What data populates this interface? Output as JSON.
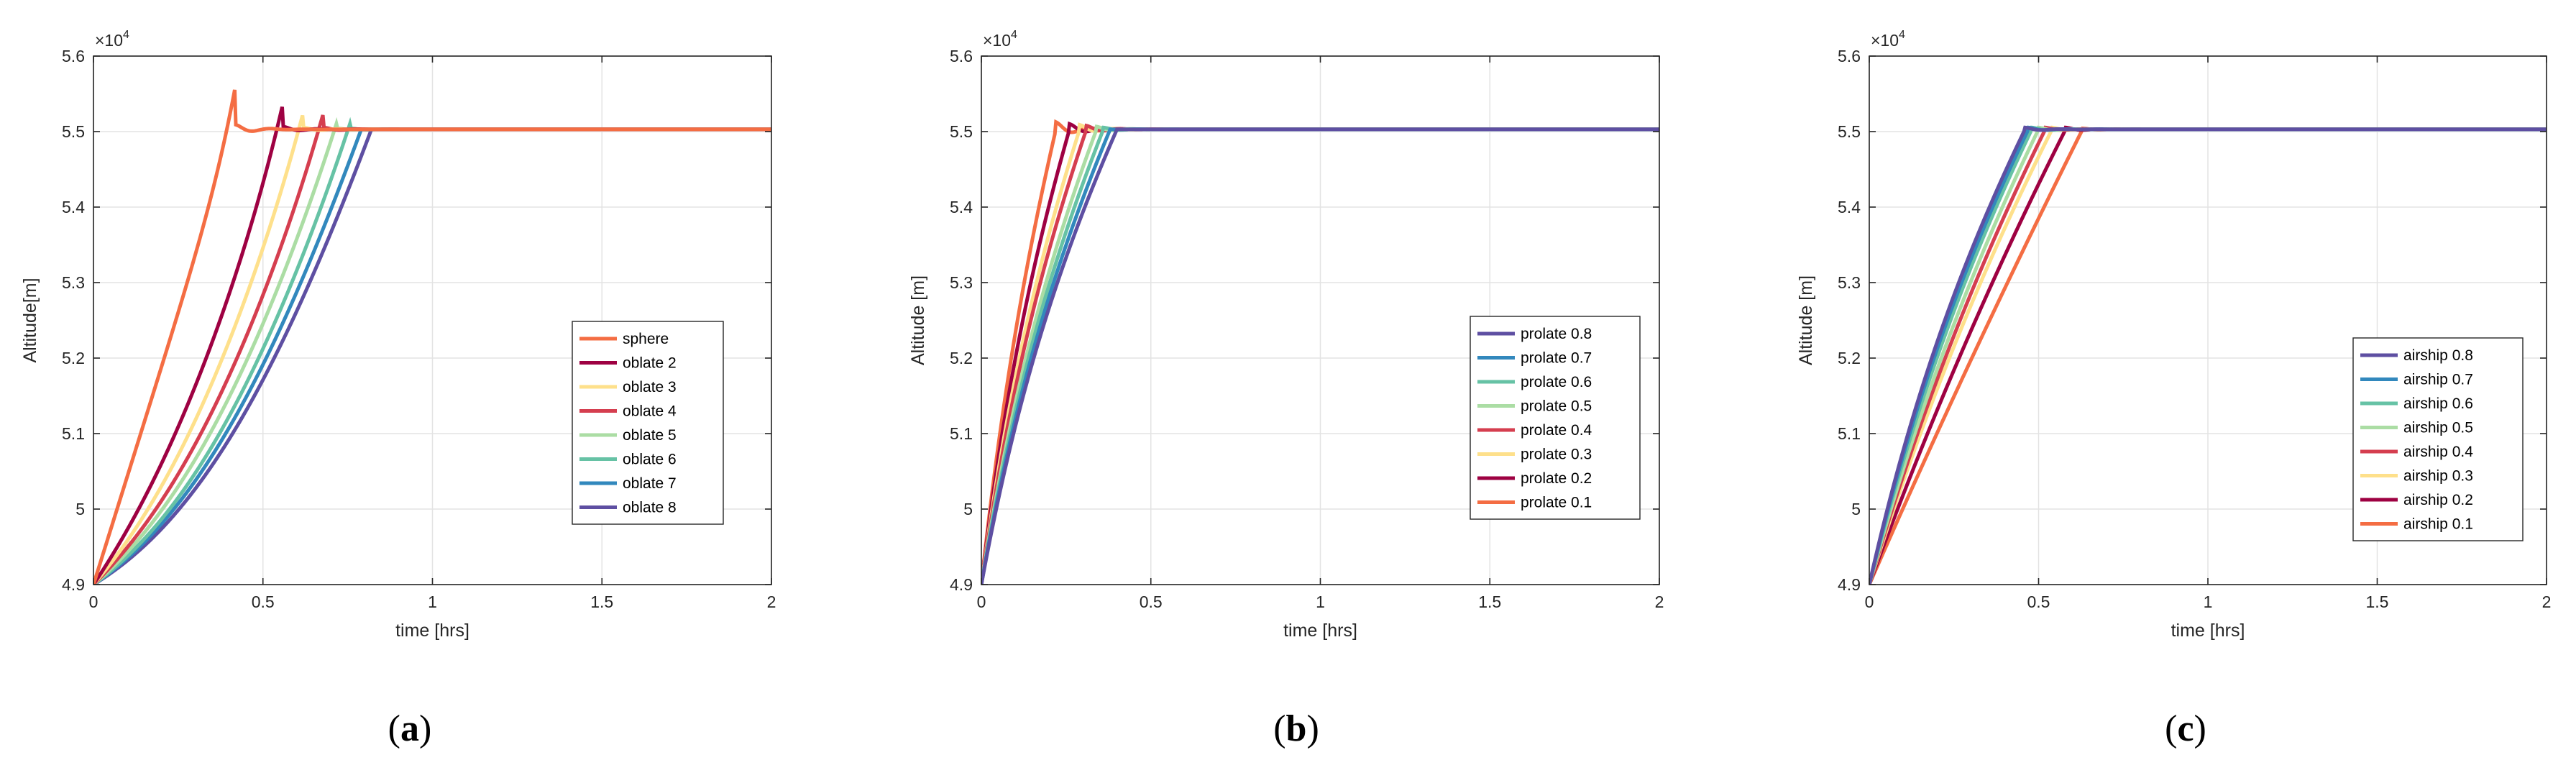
{
  "figure": {
    "panels_count": 3
  },
  "chart_data": [
    {
      "type": "line",
      "panel": "a",
      "caption_open": "(",
      "caption_letter": "a",
      "caption_close": ")",
      "xlabel": "time [hrs]",
      "ylabel": "Altitude[m]",
      "xlim": [
        0,
        2
      ],
      "ylim": [
        4.9,
        5.6
      ],
      "y_exponent_base": "×10",
      "y_exponent_power": "4",
      "xticks": [
        0,
        0.5,
        1,
        1.5,
        2
      ],
      "xtick_labels": [
        "0",
        "0.5",
        "1",
        "1.5",
        "2"
      ],
      "yticks": [
        4.9,
        5.0,
        5.1,
        5.2,
        5.3,
        5.4,
        5.5,
        5.6
      ],
      "ytick_labels": [
        "4.9",
        "5",
        "5.1",
        "5.2",
        "5.3",
        "5.4",
        "5.5",
        "5.6"
      ],
      "grid": true,
      "legend_position": "center-right",
      "series": [
        {
          "name": "sphere",
          "color": "#F46D43",
          "t_reach": 0.42,
          "overshoot": 0.005,
          "curvature": 0.0
        },
        {
          "name": "oblate 2",
          "color": "#9E0142",
          "t_reach": 0.56,
          "overshoot": 0.003,
          "curvature": 0.45
        },
        {
          "name": "oblate 3",
          "color": "#FEE08B",
          "t_reach": 0.62,
          "overshoot": 0.002,
          "curvature": 0.55
        },
        {
          "name": "oblate 4",
          "color": "#D53E4F",
          "t_reach": 0.68,
          "overshoot": 0.002,
          "curvature": 0.6
        },
        {
          "name": "oblate 5",
          "color": "#ABDDA4",
          "t_reach": 0.72,
          "overshoot": 0.001,
          "curvature": 0.65
        },
        {
          "name": "oblate 6",
          "color": "#66C2A5",
          "t_reach": 0.76,
          "overshoot": 0.001,
          "curvature": 0.7
        },
        {
          "name": "oblate 7",
          "color": "#3288BD",
          "t_reach": 0.79,
          "overshoot": 0.0,
          "curvature": 0.72
        },
        {
          "name": "oblate 8",
          "color": "#5E4FA2",
          "t_reach": 0.82,
          "overshoot": 0.0,
          "curvature": 0.75
        }
      ],
      "steady_value": 5.503
    },
    {
      "type": "line",
      "panel": "b",
      "caption_open": "(",
      "caption_letter": "b",
      "caption_close": ")",
      "xlabel": "time [hrs]",
      "ylabel": "Altitude [m]",
      "xlim": [
        0,
        2
      ],
      "ylim": [
        4.9,
        5.6
      ],
      "y_exponent_base": "×10",
      "y_exponent_power": "4",
      "xticks": [
        0,
        0.5,
        1,
        1.5,
        2
      ],
      "xtick_labels": [
        "0",
        "0.5",
        "1",
        "1.5",
        "2"
      ],
      "yticks": [
        4.9,
        5.0,
        5.1,
        5.2,
        5.3,
        5.4,
        5.5,
        5.6
      ],
      "ytick_labels": [
        "4.9",
        "5",
        "5.1",
        "5.2",
        "5.3",
        "5.4",
        "5.5",
        "5.6"
      ],
      "grid": true,
      "legend_position": "bottom-right",
      "series": [
        {
          "name": "prolate 0.8",
          "color": "#5E4FA2",
          "t_reach": 0.4,
          "overshoot": 0.0,
          "curvature": -0.35
        },
        {
          "name": "prolate 0.7",
          "color": "#3288BD",
          "t_reach": 0.38,
          "overshoot": 0.0,
          "curvature": -0.35
        },
        {
          "name": "prolate 0.6",
          "color": "#66C2A5",
          "t_reach": 0.36,
          "overshoot": 0.002,
          "curvature": -0.35
        },
        {
          "name": "prolate 0.5",
          "color": "#ABDDA4",
          "t_reach": 0.34,
          "overshoot": 0.003,
          "curvature": -0.35
        },
        {
          "name": "prolate 0.4",
          "color": "#D53E4F",
          "t_reach": 0.31,
          "overshoot": 0.004,
          "curvature": -0.35
        },
        {
          "name": "prolate 0.3",
          "color": "#FEE08B",
          "t_reach": 0.29,
          "overshoot": 0.005,
          "curvature": -0.35
        },
        {
          "name": "prolate 0.2",
          "color": "#9E0142",
          "t_reach": 0.26,
          "overshoot": 0.006,
          "curvature": -0.35
        },
        {
          "name": "prolate 0.1",
          "color": "#F46D43",
          "t_reach": 0.22,
          "overshoot": 0.008,
          "curvature": -0.3
        }
      ],
      "steady_value": 5.503
    },
    {
      "type": "line",
      "panel": "c",
      "caption_open": "(",
      "caption_letter": "c",
      "caption_close": ")",
      "xlabel": "time [hrs]",
      "ylabel": "Altitude [m]",
      "xlim": [
        0,
        2
      ],
      "ylim": [
        4.9,
        5.6
      ],
      "y_exponent_base": "×10",
      "y_exponent_power": "4",
      "xticks": [
        0,
        0.5,
        1,
        1.5,
        2
      ],
      "xtick_labels": [
        "0",
        "0.5",
        "1",
        "1.5",
        "2"
      ],
      "yticks": [
        4.9,
        5.0,
        5.1,
        5.2,
        5.3,
        5.4,
        5.5,
        5.6
      ],
      "ytick_labels": [
        "4.9",
        "5",
        "5.1",
        "5.2",
        "5.3",
        "5.4",
        "5.5",
        "5.6"
      ],
      "grid": true,
      "legend_position": "bottom-right",
      "series": [
        {
          "name": "airship 0.8",
          "color": "#5E4FA2",
          "t_reach": 0.46,
          "overshoot": 0.002,
          "curvature": -0.3
        },
        {
          "name": "airship 0.7",
          "color": "#3288BD",
          "t_reach": 0.47,
          "overshoot": 0.002,
          "curvature": -0.28
        },
        {
          "name": "airship 0.6",
          "color": "#66C2A5",
          "t_reach": 0.48,
          "overshoot": 0.002,
          "curvature": -0.25
        },
        {
          "name": "airship 0.5",
          "color": "#ABDDA4",
          "t_reach": 0.5,
          "overshoot": 0.002,
          "curvature": -0.22
        },
        {
          "name": "airship 0.4",
          "color": "#D53E4F",
          "t_reach": 0.52,
          "overshoot": 0.002,
          "curvature": -0.2
        },
        {
          "name": "airship 0.3",
          "color": "#FEE08B",
          "t_reach": 0.54,
          "overshoot": 0.002,
          "curvature": -0.18
        },
        {
          "name": "airship 0.2",
          "color": "#9E0142",
          "t_reach": 0.58,
          "overshoot": 0.002,
          "curvature": -0.12
        },
        {
          "name": "airship 0.1",
          "color": "#F46D43",
          "t_reach": 0.63,
          "overshoot": 0.001,
          "curvature": -0.05
        }
      ],
      "steady_value": 5.503
    }
  ]
}
